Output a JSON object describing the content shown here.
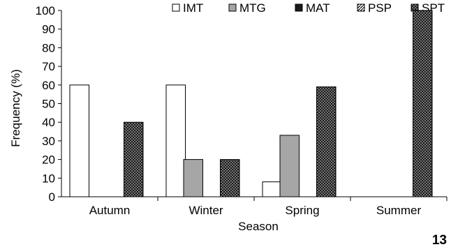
{
  "chart_data": {
    "type": "bar",
    "categories": [
      "Autumn",
      "Winter",
      "Spring",
      "Summer"
    ],
    "series": [
      {
        "name": "IMT",
        "values": [
          60,
          60,
          8,
          0
        ]
      },
      {
        "name": "MTG",
        "values": [
          0,
          20,
          33,
          0
        ]
      },
      {
        "name": "MAT",
        "values": [
          0,
          0,
          0,
          0
        ]
      },
      {
        "name": "PSP",
        "values": [
          0,
          0,
          0,
          0
        ]
      },
      {
        "name": "SPT",
        "values": [
          40,
          20,
          59,
          100
        ]
      }
    ],
    "xlabel": "Season",
    "ylabel": "Frequency (%)",
    "ylim": [
      0,
      100
    ],
    "yticks": [
      0,
      10,
      20,
      30,
      40,
      50,
      60,
      70,
      80,
      90,
      100
    ],
    "grid": false,
    "legend_position": "top"
  },
  "series_styles": {
    "IMT": {
      "fill": "#ffffff",
      "pattern": "none",
      "legend_marker": "□"
    },
    "MTG": {
      "fill": "#a6a6a6",
      "pattern": "none",
      "legend_marker": "■"
    },
    "MAT": {
      "fill": "#1a1a1a",
      "pattern": "none",
      "legend_marker": "■"
    },
    "PSP": {
      "fill": "#ffffff",
      "pattern": "diagonal",
      "legend_marker": "◪"
    },
    "SPT": {
      "fill": "#1a1a1a",
      "pattern": "dots",
      "legend_marker": "▪"
    }
  },
  "page_number": "13"
}
